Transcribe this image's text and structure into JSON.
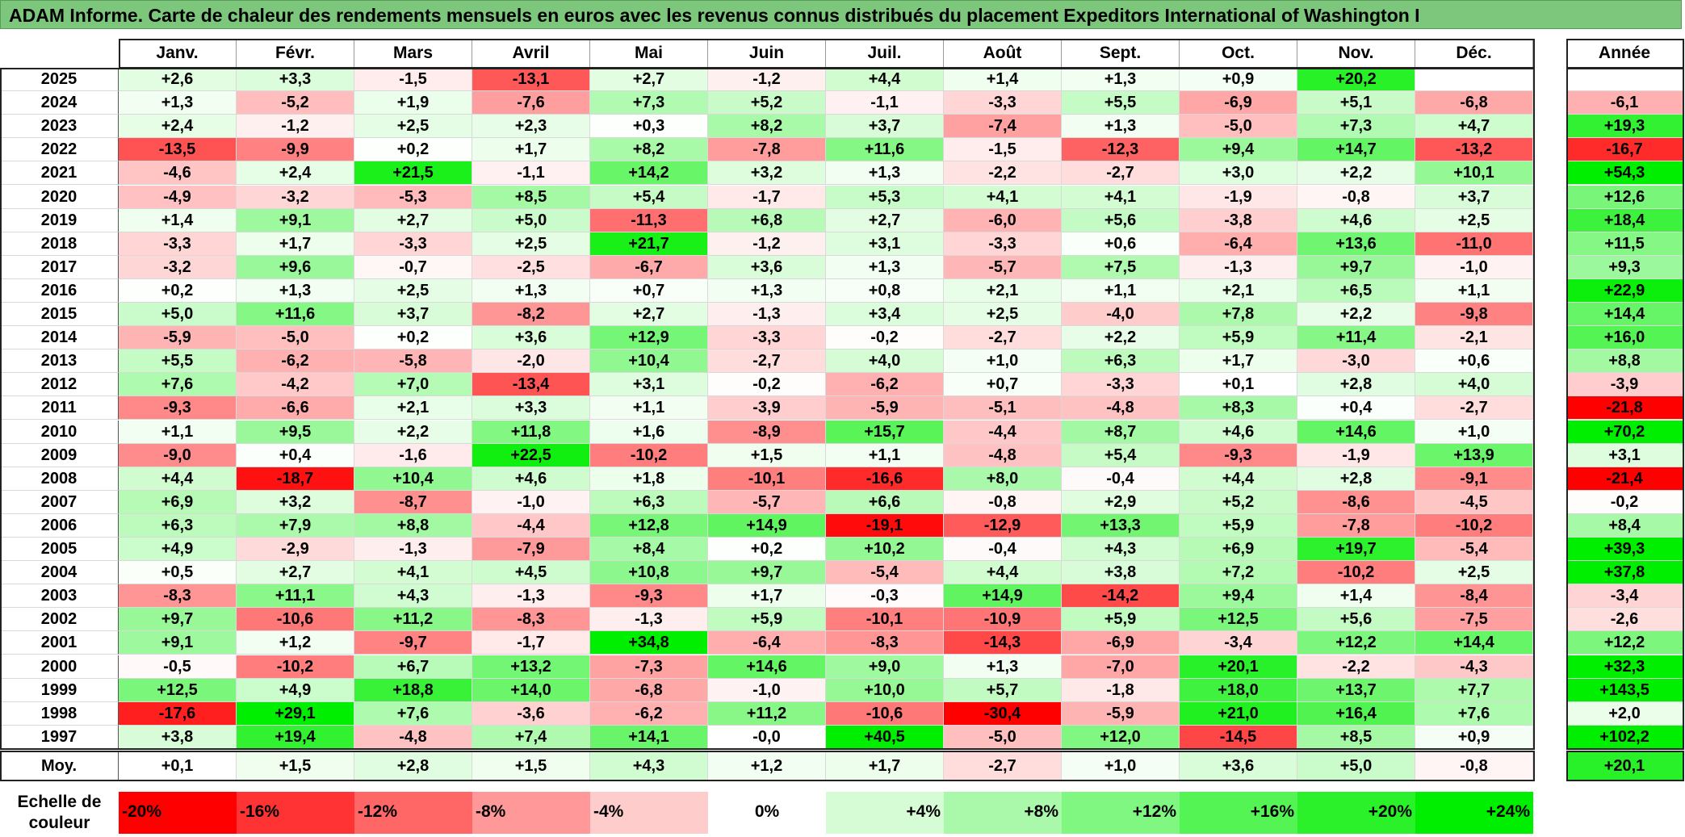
{
  "title": "ADAM Informe. Carte de chaleur des rendements mensuels en euros avec les revenus connus distribués du placement Expeditors International of Washington I",
  "months": [
    "Janv.",
    "Févr.",
    "Mars",
    "Avril",
    "Mai",
    "Juin",
    "Juil.",
    "Août",
    "Sept.",
    "Oct.",
    "Nov.",
    "Déc."
  ],
  "annual_header": "Année",
  "avg_label": "Moy.",
  "scale_title": "Echelle de couleur",
  "scale": [
    {
      "label": "-20%",
      "value": -20
    },
    {
      "label": "-16%",
      "value": -16
    },
    {
      "label": "-12%",
      "value": -12
    },
    {
      "label": "-8%",
      "value": -8
    },
    {
      "label": "-4%",
      "value": -4
    },
    {
      "label": "0%",
      "value": 0
    },
    {
      "label": "+4%",
      "value": 4
    },
    {
      "label": "+8%",
      "value": 8
    },
    {
      "label": "+12%",
      "value": 12
    },
    {
      "label": "+16%",
      "value": 16
    },
    {
      "label": "+20%",
      "value": 20
    },
    {
      "label": "+24%",
      "value": 24
    }
  ],
  "chart_data": {
    "type": "heatmap",
    "title": "ADAM Informe. Carte de chaleur des rendements mensuels en euros avec les revenus connus distribués du placement Expeditors International of Washington I",
    "columns": [
      "Janv.",
      "Févr.",
      "Mars",
      "Avril",
      "Mai",
      "Juin",
      "Juil.",
      "Août",
      "Sept.",
      "Oct.",
      "Nov.",
      "Déc."
    ],
    "rows": [
      {
        "year": "2025",
        "months": [
          "+2,6",
          "+3,3",
          "-1,5",
          "-13,1",
          "+2,7",
          "-1,2",
          "+4,4",
          "+1,4",
          "+1,3",
          "+0,9",
          "+20,2",
          ""
        ],
        "annual": ""
      },
      {
        "year": "2024",
        "months": [
          "+1,3",
          "-5,2",
          "+1,9",
          "-7,6",
          "+7,3",
          "+5,2",
          "-1,1",
          "-3,3",
          "+5,5",
          "-6,9",
          "+5,1",
          "-6,8"
        ],
        "annual": "-6,1"
      },
      {
        "year": "2023",
        "months": [
          "+2,4",
          "-1,2",
          "+2,5",
          "+2,3",
          "+0,3",
          "+8,2",
          "+3,7",
          "-7,4",
          "+1,3",
          "-5,0",
          "+7,3",
          "+4,7"
        ],
        "annual": "+19,3"
      },
      {
        "year": "2022",
        "months": [
          "-13,5",
          "-9,9",
          "+0,2",
          "+1,7",
          "+8,2",
          "-7,8",
          "+11,6",
          "-1,5",
          "-12,3",
          "+9,4",
          "+14,7",
          "-13,2"
        ],
        "annual": "-16,7"
      },
      {
        "year": "2021",
        "months": [
          "-4,6",
          "+2,4",
          "+21,5",
          "-1,1",
          "+14,2",
          "+3,2",
          "+1,3",
          "-2,2",
          "-2,7",
          "+3,0",
          "+2,2",
          "+10,1"
        ],
        "annual": "+54,3"
      },
      {
        "year": "2020",
        "months": [
          "-4,9",
          "-3,2",
          "-5,3",
          "+8,5",
          "+5,4",
          "-1,7",
          "+5,3",
          "+4,1",
          "+4,1",
          "-1,9",
          "-0,8",
          "+3,7"
        ],
        "annual": "+12,6"
      },
      {
        "year": "2019",
        "months": [
          "+1,4",
          "+9,1",
          "+2,7",
          "+5,0",
          "-11,3",
          "+6,8",
          "+2,7",
          "-6,0",
          "+5,6",
          "-3,8",
          "+4,6",
          "+2,5"
        ],
        "annual": "+18,4"
      },
      {
        "year": "2018",
        "months": [
          "-3,3",
          "+1,7",
          "-3,3",
          "+2,5",
          "+21,7",
          "-1,2",
          "+3,1",
          "-3,3",
          "+0,6",
          "-6,4",
          "+13,6",
          "-11,0"
        ],
        "annual": "+11,5"
      },
      {
        "year": "2017",
        "months": [
          "-3,2",
          "+9,6",
          "-0,7",
          "-2,5",
          "-6,7",
          "+3,6",
          "+1,3",
          "-5,7",
          "+7,5",
          "-1,3",
          "+9,7",
          "-1,0"
        ],
        "annual": "+9,3"
      },
      {
        "year": "2016",
        "months": [
          "+0,2",
          "+1,3",
          "+2,5",
          "+1,3",
          "+0,7",
          "+1,3",
          "+0,8",
          "+2,1",
          "+1,1",
          "+2,1",
          "+6,5",
          "+1,1"
        ],
        "annual": "+22,9"
      },
      {
        "year": "2015",
        "months": [
          "+5,0",
          "+11,6",
          "+3,7",
          "-8,2",
          "+2,7",
          "-1,3",
          "+3,4",
          "+2,5",
          "-4,0",
          "+7,8",
          "+2,2",
          "-9,8"
        ],
        "annual": "+14,4"
      },
      {
        "year": "2014",
        "months": [
          "-5,9",
          "-5,0",
          "+0,2",
          "+3,6",
          "+12,9",
          "-3,3",
          "-0,2",
          "-2,7",
          "+2,2",
          "+5,9",
          "+11,4",
          "-2,1"
        ],
        "annual": "+16,0"
      },
      {
        "year": "2013",
        "months": [
          "+5,5",
          "-6,2",
          "-5,8",
          "-2,0",
          "+10,4",
          "-2,7",
          "+4,0",
          "+1,0",
          "+6,3",
          "+1,7",
          "-3,0",
          "+0,6"
        ],
        "annual": "+8,8"
      },
      {
        "year": "2012",
        "months": [
          "+7,6",
          "-4,2",
          "+7,0",
          "-13,4",
          "+3,1",
          "-0,2",
          "-6,2",
          "+0,7",
          "-3,3",
          "+0,1",
          "+2,8",
          "+4,0"
        ],
        "annual": "-3,9"
      },
      {
        "year": "2011",
        "months": [
          "-9,3",
          "-6,6",
          "+2,1",
          "+3,3",
          "+1,1",
          "-3,9",
          "-5,9",
          "-5,1",
          "-4,8",
          "+8,3",
          "+0,4",
          "-2,7"
        ],
        "annual": "-21,8"
      },
      {
        "year": "2010",
        "months": [
          "+1,1",
          "+9,5",
          "+2,2",
          "+11,8",
          "+1,6",
          "-8,9",
          "+15,7",
          "-4,4",
          "+8,7",
          "+4,6",
          "+14,6",
          "+1,0"
        ],
        "annual": "+70,2"
      },
      {
        "year": "2009",
        "months": [
          "-9,0",
          "+0,4",
          "-1,6",
          "+22,5",
          "-10,2",
          "+1,5",
          "+1,1",
          "-4,8",
          "+5,4",
          "-9,3",
          "-1,9",
          "+13,9"
        ],
        "annual": "+3,1"
      },
      {
        "year": "2008",
        "months": [
          "+4,4",
          "-18,7",
          "+10,4",
          "+4,6",
          "+1,8",
          "-10,1",
          "-16,6",
          "+8,0",
          "-0,4",
          "+4,4",
          "+2,8",
          "-9,1"
        ],
        "annual": "-21,4"
      },
      {
        "year": "2007",
        "months": [
          "+6,9",
          "+3,2",
          "-8,7",
          "-1,0",
          "+6,3",
          "-5,7",
          "+6,6",
          "-0,8",
          "+2,9",
          "+5,2",
          "-8,6",
          "-4,5"
        ],
        "annual": "-0,2"
      },
      {
        "year": "2006",
        "months": [
          "+6,3",
          "+7,9",
          "+8,8",
          "-4,4",
          "+12,8",
          "+14,9",
          "-19,1",
          "-12,9",
          "+13,3",
          "+5,9",
          "-7,8",
          "-10,2"
        ],
        "annual": "+8,4"
      },
      {
        "year": "2005",
        "months": [
          "+4,9",
          "-2,9",
          "-1,3",
          "-7,9",
          "+8,4",
          "+0,2",
          "+10,2",
          "-0,4",
          "+4,3",
          "+6,9",
          "+19,7",
          "-5,4"
        ],
        "annual": "+39,3"
      },
      {
        "year": "2004",
        "months": [
          "+0,5",
          "+2,7",
          "+4,1",
          "+4,5",
          "+10,8",
          "+9,7",
          "-5,4",
          "+4,4",
          "+3,8",
          "+7,2",
          "-10,2",
          "+2,5"
        ],
        "annual": "+37,8"
      },
      {
        "year": "2003",
        "months": [
          "-8,3",
          "+11,1",
          "+4,3",
          "-1,3",
          "-9,3",
          "+1,7",
          "-0,3",
          "+14,9",
          "-14,2",
          "+9,4",
          "+1,4",
          "-8,4"
        ],
        "annual": "-3,4"
      },
      {
        "year": "2002",
        "months": [
          "+9,7",
          "-10,6",
          "+11,2",
          "-8,3",
          "-1,3",
          "+5,9",
          "-10,1",
          "-10,9",
          "+5,9",
          "+12,5",
          "+5,6",
          "-7,5"
        ],
        "annual": "-2,6"
      },
      {
        "year": "2001",
        "months": [
          "+9,1",
          "+1,2",
          "-9,7",
          "-1,7",
          "+34,8",
          "-6,4",
          "-8,3",
          "-14,3",
          "-6,9",
          "-3,4",
          "+12,2",
          "+14,4"
        ],
        "annual": "+12,2"
      },
      {
        "year": "2000",
        "months": [
          "-0,5",
          "-10,2",
          "+6,7",
          "+13,2",
          "-7,3",
          "+14,6",
          "+9,0",
          "+1,3",
          "-7,0",
          "+20,1",
          "-2,2",
          "-4,3"
        ],
        "annual": "+32,3"
      },
      {
        "year": "1999",
        "months": [
          "+12,5",
          "+4,9",
          "+18,8",
          "+14,0",
          "-6,8",
          "-1,0",
          "+10,0",
          "+5,7",
          "-1,8",
          "+18,0",
          "+13,7",
          "+7,7"
        ],
        "annual": "+143,5"
      },
      {
        "year": "1998",
        "months": [
          "-17,6",
          "+29,1",
          "+7,6",
          "-3,6",
          "-6,2",
          "+11,2",
          "-10,6",
          "-30,4",
          "-5,9",
          "+21,0",
          "+16,4",
          "+7,6"
        ],
        "annual": "+2,0"
      },
      {
        "year": "1997",
        "months": [
          "+3,8",
          "+19,4",
          "-4,8",
          "+7,4",
          "+14,1",
          "-0,0",
          "+40,5",
          "-5,0",
          "+12,0",
          "-14,5",
          "+8,5",
          "+0,9"
        ],
        "annual": "+102,2"
      }
    ],
    "average": {
      "label": "Moy.",
      "months": [
        "+0,1",
        "+1,5",
        "+2,8",
        "+1,5",
        "+4,3",
        "+1,2",
        "+1,7",
        "-2,7",
        "+1,0",
        "+3,6",
        "+5,0",
        "-0,8"
      ],
      "annual": "+20,1"
    },
    "color_scale": {
      "min": -20,
      "max": 24,
      "neg_color": "#ff0000",
      "zero_color": "#ffffff",
      "pos_color": "#00ee00"
    }
  }
}
